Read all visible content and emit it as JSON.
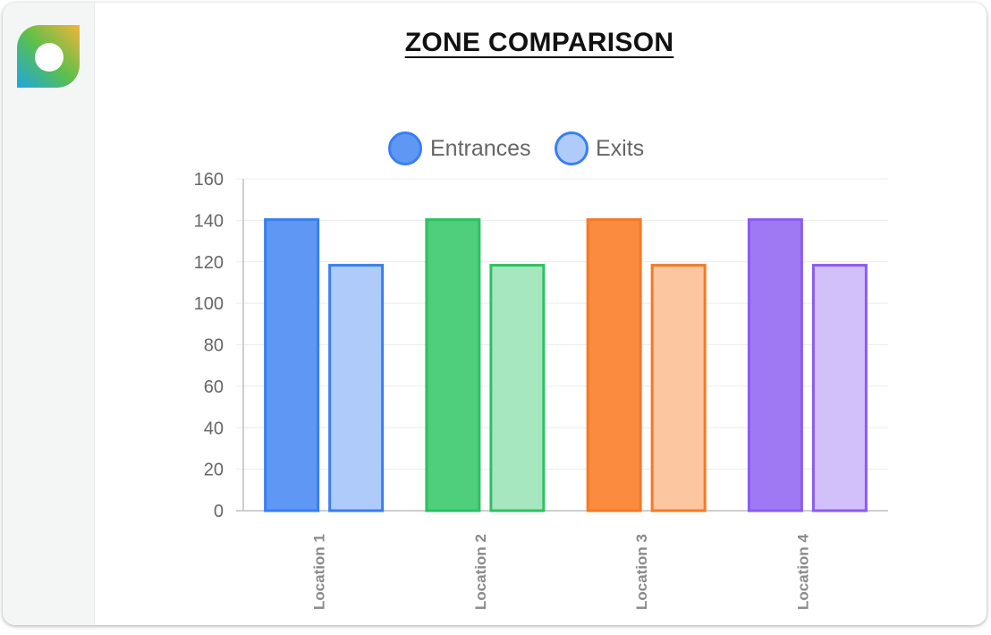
{
  "page": {
    "title": "ZONE COMPARISON"
  },
  "sidebar": {
    "logo_icon": "app-logo-icon"
  },
  "colors": {
    "grid": "#ececec",
    "axis": "#bdbdbd",
    "tick_text": "#666666",
    "location_label_text": "#8a8a8a"
  },
  "chart_data": {
    "type": "bar",
    "categories": [
      "Location 1",
      "Location 2",
      "Location 3",
      "Location 4"
    ],
    "series": [
      {
        "name": "Entrances",
        "values": [
          141,
          141,
          141,
          141
        ],
        "fills": [
          "#5f97f4",
          "#4fcf7b",
          "#fb8b3f",
          "#9f78f4"
        ],
        "strokes": [
          "#3a7ef0",
          "#2fc063",
          "#f57925",
          "#8a5cf0"
        ],
        "legend_fill": "#5f97f4",
        "legend_stroke": "#3a7ef0"
      },
      {
        "name": "Exits",
        "values": [
          119,
          119,
          119,
          119
        ],
        "fills": [
          "#aecbf9",
          "#a6e7bf",
          "#fcc6a0",
          "#d2c0fb"
        ],
        "strokes": [
          "#3a7ef0",
          "#2fc063",
          "#f57925",
          "#8a5cf0"
        ],
        "legend_fill": "#aecbf9",
        "legend_stroke": "#3a7ef0"
      }
    ],
    "ylim": [
      0,
      160
    ],
    "yticks": [
      "0",
      "20",
      "40",
      "60",
      "80",
      "100",
      "120",
      "140",
      "160"
    ],
    "grid": true,
    "legend_position": "top-center"
  }
}
